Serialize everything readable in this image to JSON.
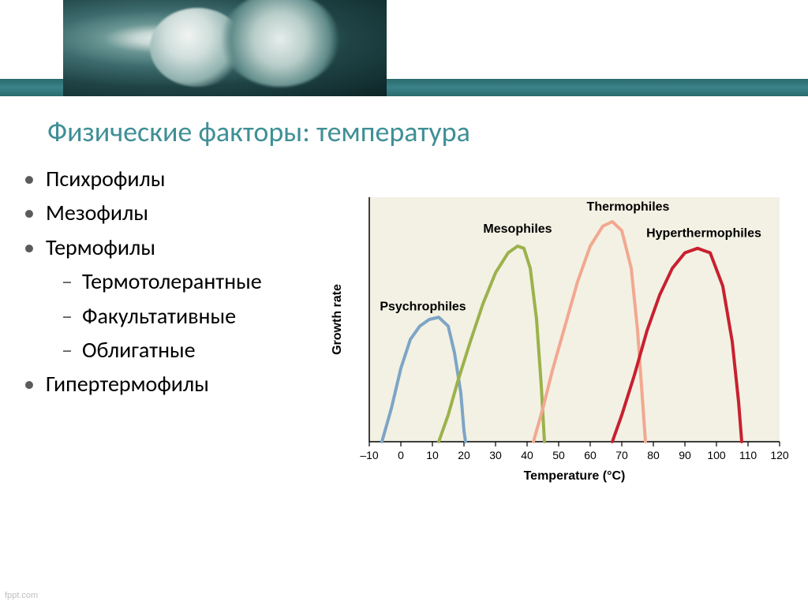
{
  "title": {
    "text": "Физические факторы: температура",
    "color": "#3f8f96",
    "fontsize": 36
  },
  "bullets": {
    "level1": [
      "Психрофилы",
      "Мезофилы",
      "Термофилы",
      "Гипертермофилы"
    ],
    "level2_under": 2,
    "level2": [
      "Термотолерантные",
      "Факультативные",
      "Облигатные"
    ],
    "fontsize": 28
  },
  "chart": {
    "type": "line",
    "background_color": "#f3f1e4",
    "xlabel": "Temperature (°C)",
    "ylabel": "Growth rate",
    "label_fontsize": 16,
    "xlim": [
      -10,
      120
    ],
    "xtick_step": 10,
    "line_width": 4,
    "curves": [
      {
        "label": "Psychrophiles",
        "color": "#7da5c5",
        "label_x": 7,
        "label_y": 0.59,
        "points": [
          [
            -6,
            0
          ],
          [
            -3,
            0.15
          ],
          [
            0,
            0.33
          ],
          [
            3,
            0.46
          ],
          [
            6,
            0.52
          ],
          [
            9,
            0.55
          ],
          [
            12,
            0.56
          ],
          [
            15,
            0.52
          ],
          [
            17,
            0.4
          ],
          [
            19,
            0.22
          ],
          [
            20,
            0.05
          ],
          [
            20.5,
            0
          ]
        ]
      },
      {
        "label": "Mesophiles",
        "color": "#9bb24b",
        "label_x": 37,
        "label_y": 0.94,
        "points": [
          [
            12,
            0
          ],
          [
            15,
            0.12
          ],
          [
            18,
            0.27
          ],
          [
            22,
            0.45
          ],
          [
            26,
            0.62
          ],
          [
            30,
            0.76
          ],
          [
            34,
            0.85
          ],
          [
            37,
            0.88
          ],
          [
            39,
            0.87
          ],
          [
            41,
            0.78
          ],
          [
            43,
            0.55
          ],
          [
            44.5,
            0.25
          ],
          [
            45.5,
            0
          ]
        ]
      },
      {
        "label": "Thermophiles",
        "color": "#f2a890",
        "label_x": 72,
        "label_y": 1.04,
        "points": [
          [
            42,
            0
          ],
          [
            45,
            0.15
          ],
          [
            48,
            0.32
          ],
          [
            52,
            0.52
          ],
          [
            56,
            0.72
          ],
          [
            60,
            0.88
          ],
          [
            64,
            0.97
          ],
          [
            67,
            0.99
          ],
          [
            70,
            0.95
          ],
          [
            73,
            0.78
          ],
          [
            75,
            0.5
          ],
          [
            76.5,
            0.2
          ],
          [
            77.5,
            0
          ]
        ]
      },
      {
        "label": "Hyperthermophiles",
        "color": "#c8202f",
        "label_x": 96,
        "label_y": 0.92,
        "points": [
          [
            67,
            0
          ],
          [
            70,
            0.12
          ],
          [
            74,
            0.3
          ],
          [
            78,
            0.5
          ],
          [
            82,
            0.66
          ],
          [
            86,
            0.78
          ],
          [
            90,
            0.85
          ],
          [
            94,
            0.87
          ],
          [
            98,
            0.85
          ],
          [
            102,
            0.7
          ],
          [
            105,
            0.45
          ],
          [
            107,
            0.18
          ],
          [
            108,
            0
          ]
        ]
      }
    ]
  },
  "footer": "fppt.com"
}
